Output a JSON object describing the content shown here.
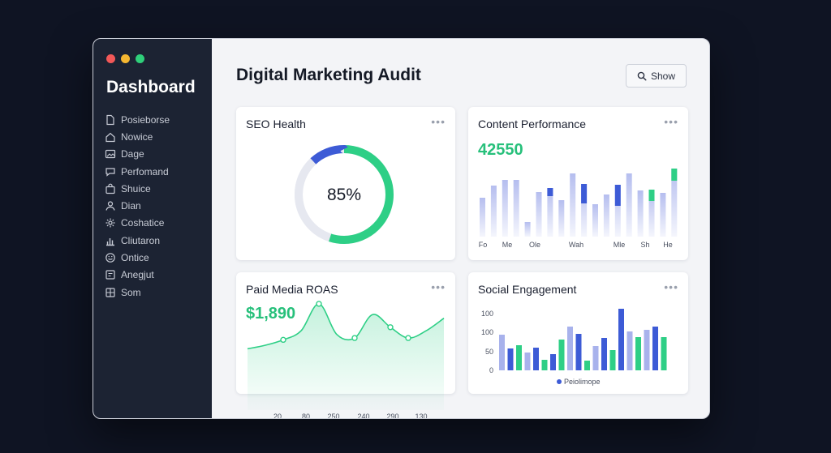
{
  "sidebar": {
    "title": "Dashboard",
    "items": [
      {
        "label": "Posieborse",
        "icon": "document-icon"
      },
      {
        "label": "Nowice",
        "icon": "home-icon"
      },
      {
        "label": "Dage",
        "icon": "image-icon"
      },
      {
        "label": "Perfomand",
        "icon": "chat-icon"
      },
      {
        "label": "Shuice",
        "icon": "bag-icon"
      },
      {
        "label": "Dian",
        "icon": "user-icon"
      },
      {
        "label": "Coshatice",
        "icon": "gear-icon"
      },
      {
        "label": "Cliutaron",
        "icon": "chart-icon"
      },
      {
        "label": "Ontice",
        "icon": "smile-icon"
      },
      {
        "label": "Anegjut",
        "icon": "box-icon"
      },
      {
        "label": "Som",
        "icon": "grid-icon"
      }
    ]
  },
  "header": {
    "title": "Digital Marketing Audit",
    "show_label": "Show"
  },
  "colors": {
    "green": "#2ecf86",
    "blue": "#3d5bd6",
    "lavender": "#a8b2ec",
    "gray_track": "#e6e8f0"
  },
  "cards": {
    "seo": {
      "title": "SEO Health",
      "menu": "•••",
      "value_text": "85%",
      "chart_data": {
        "type": "pie",
        "segments": [
          {
            "name": "green",
            "value": 55
          },
          {
            "name": "gray",
            "value": 33
          },
          {
            "name": "blue",
            "value": 12
          }
        ]
      }
    },
    "content": {
      "title": "Content Performance",
      "menu": "•••",
      "value_text": "42550",
      "chart_data": {
        "type": "bar",
        "categories": [
          "Fo",
          "Me",
          "Ole",
          "Wah",
          "Mle",
          "Sh",
          "He"
        ],
        "bars": [
          {
            "h": 48,
            "blue": 0,
            "green": 0
          },
          {
            "h": 63,
            "blue": 0,
            "green": 0
          },
          {
            "h": 70,
            "blue": 0,
            "green": 0
          },
          {
            "h": 70,
            "blue": 0,
            "green": 0
          },
          {
            "h": 18,
            "blue": 0,
            "green": 0
          },
          {
            "h": 55,
            "blue": 0,
            "green": 0
          },
          {
            "h": 60,
            "blue": 10,
            "green": 0
          },
          {
            "h": 45,
            "blue": 0,
            "green": 0
          },
          {
            "h": 78,
            "blue": 0,
            "green": 0
          },
          {
            "h": 65,
            "blue": 24,
            "green": 0
          },
          {
            "h": 40,
            "blue": 0,
            "green": 0
          },
          {
            "h": 52,
            "blue": 0,
            "green": 0
          },
          {
            "h": 64,
            "blue": 26,
            "green": 0
          },
          {
            "h": 78,
            "blue": 0,
            "green": 0
          },
          {
            "h": 57,
            "blue": 0,
            "green": 0
          },
          {
            "h": 58,
            "blue": 0,
            "green": 14
          },
          {
            "h": 54,
            "blue": 0,
            "green": 0
          },
          {
            "h": 84,
            "blue": 0,
            "green": 15
          }
        ]
      }
    },
    "paid": {
      "title": "Paid Media ROAS",
      "menu": "•••",
      "value_text": "$1,890",
      "chart_data": {
        "type": "area",
        "x": [
          "20",
          "80",
          "250",
          "240",
          "290",
          "130"
        ],
        "points": [
          14,
          18,
          24,
          34,
          64,
          30,
          26,
          52,
          38,
          26,
          34,
          48
        ]
      }
    },
    "social": {
      "title": "Social Engagement",
      "menu": "•••",
      "legend": "Peiolimope",
      "chart_data": {
        "type": "bar",
        "y_ticks": [
          "0",
          "50",
          "100",
          "100"
        ],
        "bars": [
          {
            "v": 44,
            "c": "lavender"
          },
          {
            "v": 27,
            "c": "blue"
          },
          {
            "v": 31,
            "c": "green"
          },
          {
            "v": 22,
            "c": "lavender"
          },
          {
            "v": 28,
            "c": "blue"
          },
          {
            "v": 13,
            "c": "green"
          },
          {
            "v": 20,
            "c": "blue"
          },
          {
            "v": 38,
            "c": "green"
          },
          {
            "v": 54,
            "c": "lavender"
          },
          {
            "v": 45,
            "c": "blue"
          },
          {
            "v": 12,
            "c": "green"
          },
          {
            "v": 30,
            "c": "lavender"
          },
          {
            "v": 40,
            "c": "blue"
          },
          {
            "v": 25,
            "c": "green"
          },
          {
            "v": 76,
            "c": "blue"
          },
          {
            "v": 48,
            "c": "lavender"
          },
          {
            "v": 41,
            "c": "green"
          },
          {
            "v": 50,
            "c": "lavender"
          },
          {
            "v": 54,
            "c": "blue"
          },
          {
            "v": 41,
            "c": "green"
          }
        ]
      }
    }
  }
}
